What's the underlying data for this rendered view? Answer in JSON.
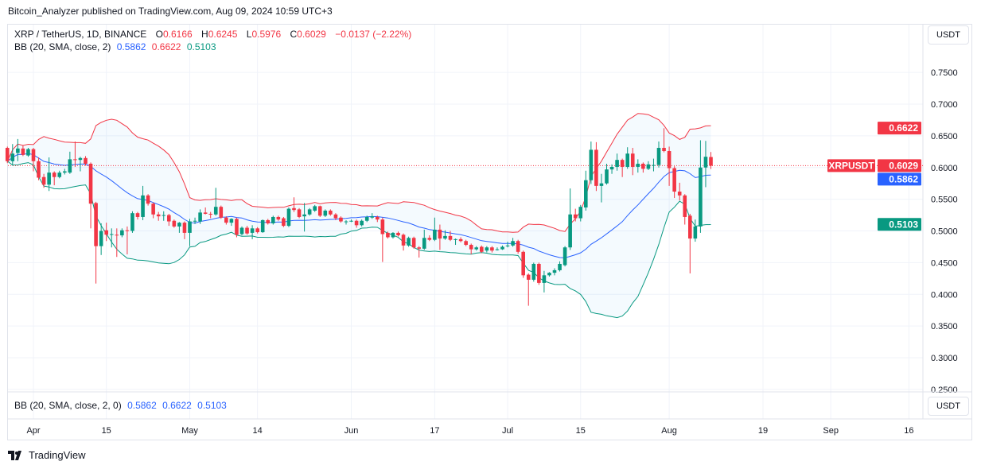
{
  "publisher_line": "Bitcoin_Analyzer published on TradingView.com, Aug 09, 2024 10:59 UTC+3",
  "legend": {
    "symbol": "XRP / TetherUS, 1D, BINANCE",
    "o_label": "O",
    "o": "0.6166",
    "h_label": "H",
    "h": "0.6245",
    "l_label": "L",
    "l": "0.5976",
    "c_label": "C",
    "c": "0.6029",
    "change": "−0.0137 (−2.22%)",
    "bb_label": "BB (20, SMA, close, 2)",
    "bb_basis": "0.5862",
    "bb_upper": "0.6622",
    "bb_lower": "0.5103"
  },
  "lower_pane": {
    "bb_label": "BB (20, SMA, close, 2, 0)",
    "bb_basis": "0.5862",
    "bb_upper": "0.6622",
    "bb_lower": "0.5103",
    "currency": "USDT"
  },
  "price_axis": {
    "currency": "USDT"
  },
  "tags": {
    "symbol": "XRPUSDT",
    "last": "0.6029",
    "upper": "0.6622",
    "basis": "0.5862",
    "lower": "0.5103"
  },
  "brand": "TradingView",
  "colors": {
    "up": "#089981",
    "down": "#f23645",
    "basis": "#2962ff",
    "upper": "#f23645",
    "lower": "#089981",
    "band_fill": "#2196f3"
  },
  "chart_data": {
    "type": "candlestick",
    "title": "XRP / TetherUS, 1D, BINANCE",
    "indicator": {
      "name": "BB",
      "length": 20,
      "ma": "SMA",
      "source": "close",
      "mult": 2,
      "last": {
        "basis": 0.5862,
        "upper": 0.6622,
        "lower": 0.5103
      }
    },
    "ylim": [
      0.25,
      0.78
    ],
    "y_ticks": [
      "0.7500",
      "0.7000",
      "0.6500",
      "0.6000",
      "0.5500",
      "0.5000",
      "0.4500",
      "0.4000",
      "0.3500",
      "0.3000",
      "0.2500"
    ],
    "x_ticks": [
      {
        "label": "Apr",
        "date": "2024-04-01"
      },
      {
        "label": "15",
        "date": "2024-04-15"
      },
      {
        "label": "May",
        "date": "2024-05-01"
      },
      {
        "label": "14",
        "date": "2024-05-14"
      },
      {
        "label": "Jun",
        "date": "2024-06-01"
      },
      {
        "label": "17",
        "date": "2024-06-17"
      },
      {
        "label": "Jul",
        "date": "2024-07-01"
      },
      {
        "label": "15",
        "date": "2024-07-15"
      },
      {
        "label": "Aug",
        "date": "2024-08-01"
      },
      {
        "label": "19",
        "date": "2024-08-19"
      },
      {
        "label": "Sep",
        "date": "2024-09-01"
      },
      {
        "label": "16",
        "date": "2024-09-16"
      }
    ],
    "x_range": [
      "2024-03-27",
      "2024-09-20"
    ],
    "grid": true,
    "last_price": 0.6029,
    "candles_columns": [
      "date",
      "open",
      "high",
      "low",
      "close"
    ],
    "candles": [
      [
        "2024-03-27",
        0.631,
        0.633,
        0.607,
        0.61
      ],
      [
        "2024-03-28",
        0.61,
        0.637,
        0.603,
        0.622
      ],
      [
        "2024-03-29",
        0.623,
        0.645,
        0.61,
        0.63
      ],
      [
        "2024-03-30",
        0.63,
        0.635,
        0.618,
        0.62
      ],
      [
        "2024-03-31",
        0.619,
        0.631,
        0.617,
        0.629
      ],
      [
        "2024-04-01",
        0.629,
        0.631,
        0.594,
        0.61
      ],
      [
        "2024-04-02",
        0.61,
        0.616,
        0.58,
        0.584
      ],
      [
        "2024-04-03",
        0.585,
        0.59,
        0.568,
        0.573
      ],
      [
        "2024-04-04",
        0.573,
        0.616,
        0.563,
        0.592
      ],
      [
        "2024-04-05",
        0.592,
        0.594,
        0.572,
        0.585
      ],
      [
        "2024-04-06",
        0.585,
        0.595,
        0.583,
        0.592
      ],
      [
        "2024-04-07",
        0.592,
        0.598,
        0.589,
        0.594
      ],
      [
        "2024-04-08",
        0.592,
        0.625,
        0.59,
        0.613
      ],
      [
        "2024-04-09",
        0.613,
        0.641,
        0.601,
        0.612
      ],
      [
        "2024-04-10",
        0.612,
        0.617,
        0.594,
        0.615
      ],
      [
        "2024-04-11",
        0.615,
        0.618,
        0.603,
        0.606
      ],
      [
        "2024-04-12",
        0.606,
        0.608,
        0.504,
        0.543
      ],
      [
        "2024-04-13",
        0.544,
        0.546,
        0.417,
        0.476
      ],
      [
        "2024-04-14",
        0.476,
        0.512,
        0.462,
        0.5
      ],
      [
        "2024-04-15",
        0.501,
        0.513,
        0.484,
        0.494
      ],
      [
        "2024-04-16",
        0.495,
        0.504,
        0.474,
        0.495
      ],
      [
        "2024-04-17",
        0.494,
        0.504,
        0.459,
        0.493
      ],
      [
        "2024-04-18",
        0.493,
        0.504,
        0.49,
        0.501
      ],
      [
        "2024-04-19",
        0.501,
        0.507,
        0.463,
        0.5
      ],
      [
        "2024-04-20",
        0.5,
        0.531,
        0.497,
        0.528
      ],
      [
        "2024-04-21",
        0.528,
        0.53,
        0.518,
        0.522
      ],
      [
        "2024-04-22",
        0.522,
        0.571,
        0.517,
        0.556
      ],
      [
        "2024-04-23",
        0.556,
        0.558,
        0.54,
        0.543
      ],
      [
        "2024-04-24",
        0.543,
        0.545,
        0.52,
        0.526
      ],
      [
        "2024-04-25",
        0.526,
        0.53,
        0.516,
        0.523
      ],
      [
        "2024-04-26",
        0.525,
        0.531,
        0.516,
        0.525
      ],
      [
        "2024-04-27",
        0.525,
        0.527,
        0.508,
        0.515
      ],
      [
        "2024-04-28",
        0.516,
        0.518,
        0.505,
        0.507
      ],
      [
        "2024-04-29",
        0.507,
        0.514,
        0.497,
        0.513
      ],
      [
        "2024-04-30",
        0.513,
        0.515,
        0.487,
        0.497
      ],
      [
        "2024-05-01",
        0.497,
        0.519,
        0.476,
        0.515
      ],
      [
        "2024-05-02",
        0.515,
        0.521,
        0.511,
        0.516
      ],
      [
        "2024-05-03",
        0.515,
        0.534,
        0.511,
        0.529
      ],
      [
        "2024-05-04",
        0.529,
        0.537,
        0.526,
        0.527
      ],
      [
        "2024-05-05",
        0.527,
        0.53,
        0.52,
        0.526
      ],
      [
        "2024-05-06",
        0.526,
        0.568,
        0.524,
        0.538
      ],
      [
        "2024-05-07",
        0.538,
        0.54,
        0.519,
        0.521
      ],
      [
        "2024-05-08",
        0.521,
        0.523,
        0.51,
        0.513
      ],
      [
        "2024-05-09",
        0.513,
        0.52,
        0.508,
        0.519
      ],
      [
        "2024-05-10",
        0.519,
        0.521,
        0.49,
        0.494
      ],
      [
        "2024-05-11",
        0.495,
        0.507,
        0.493,
        0.505
      ],
      [
        "2024-05-12",
        0.505,
        0.508,
        0.494,
        0.496
      ],
      [
        "2024-05-13",
        0.497,
        0.509,
        0.487,
        0.504
      ],
      [
        "2024-05-14",
        0.504,
        0.506,
        0.496,
        0.498
      ],
      [
        "2024-05-15",
        0.498,
        0.518,
        0.497,
        0.517
      ],
      [
        "2024-05-16",
        0.517,
        0.519,
        0.51,
        0.512
      ],
      [
        "2024-05-17",
        0.512,
        0.524,
        0.51,
        0.522
      ],
      [
        "2024-05-18",
        0.522,
        0.524,
        0.516,
        0.518
      ],
      [
        "2024-05-19",
        0.52,
        0.522,
        0.506,
        0.508
      ],
      [
        "2024-05-20",
        0.508,
        0.537,
        0.506,
        0.535
      ],
      [
        "2024-05-21",
        0.536,
        0.553,
        0.53,
        0.533
      ],
      [
        "2024-05-22",
        0.534,
        0.536,
        0.52,
        0.522
      ],
      [
        "2024-05-23",
        0.523,
        0.544,
        0.499,
        0.526
      ],
      [
        "2024-05-24",
        0.526,
        0.536,
        0.524,
        0.534
      ],
      [
        "2024-05-25",
        0.532,
        0.541,
        0.53,
        0.539
      ],
      [
        "2024-05-26",
        0.539,
        0.54,
        0.522,
        0.524
      ],
      [
        "2024-05-27",
        0.524,
        0.534,
        0.522,
        0.532
      ],
      [
        "2024-05-28",
        0.532,
        0.534,
        0.524,
        0.526
      ],
      [
        "2024-05-29",
        0.526,
        0.528,
        0.517,
        0.52
      ],
      [
        "2024-05-30",
        0.521,
        0.523,
        0.513,
        0.515
      ],
      [
        "2024-05-31",
        0.515,
        0.517,
        0.51,
        0.515
      ],
      [
        "2024-06-01",
        0.515,
        0.518,
        0.514,
        0.516
      ],
      [
        "2024-06-02",
        0.516,
        0.518,
        0.505,
        0.509
      ],
      [
        "2024-06-03",
        0.509,
        0.518,
        0.507,
        0.516
      ],
      [
        "2024-06-04",
        0.516,
        0.524,
        0.514,
        0.522
      ],
      [
        "2024-06-05",
        0.521,
        0.528,
        0.519,
        0.523
      ],
      [
        "2024-06-06",
        0.522,
        0.524,
        0.514,
        0.518
      ],
      [
        "2024-06-07",
        0.518,
        0.521,
        0.451,
        0.495
      ],
      [
        "2024-06-08",
        0.497,
        0.499,
        0.488,
        0.49
      ],
      [
        "2024-06-09",
        0.49,
        0.498,
        0.488,
        0.497
      ],
      [
        "2024-06-10",
        0.497,
        0.499,
        0.491,
        0.493
      ],
      [
        "2024-06-11",
        0.494,
        0.496,
        0.469,
        0.477
      ],
      [
        "2024-06-12",
        0.477,
        0.491,
        0.475,
        0.489
      ],
      [
        "2024-06-13",
        0.489,
        0.491,
        0.472,
        0.474
      ],
      [
        "2024-06-14",
        0.474,
        0.476,
        0.458,
        0.472
      ],
      [
        "2024-06-15",
        0.472,
        0.502,
        0.47,
        0.489
      ],
      [
        "2024-06-16",
        0.489,
        0.493,
        0.484,
        0.486
      ],
      [
        "2024-06-17",
        0.486,
        0.521,
        0.484,
        0.502
      ],
      [
        "2024-06-18",
        0.502,
        0.51,
        0.47,
        0.488
      ],
      [
        "2024-06-19",
        0.488,
        0.501,
        0.486,
        0.492
      ],
      [
        "2024-06-20",
        0.492,
        0.5,
        0.484,
        0.486
      ],
      [
        "2024-06-21",
        0.487,
        0.488,
        0.478,
        0.487
      ],
      [
        "2024-06-22",
        0.487,
        0.49,
        0.482,
        0.484
      ],
      [
        "2024-06-23",
        0.484,
        0.486,
        0.476,
        0.478
      ],
      [
        "2024-06-24",
        0.478,
        0.48,
        0.463,
        0.471
      ],
      [
        "2024-06-25",
        0.471,
        0.476,
        0.469,
        0.474
      ],
      [
        "2024-06-26",
        0.475,
        0.477,
        0.465,
        0.467
      ],
      [
        "2024-06-27",
        0.469,
        0.476,
        0.466,
        0.474
      ],
      [
        "2024-06-28",
        0.474,
        0.476,
        0.466,
        0.469
      ],
      [
        "2024-06-29",
        0.471,
        0.474,
        0.469,
        0.471
      ],
      [
        "2024-06-30",
        0.471,
        0.477,
        0.47,
        0.475
      ],
      [
        "2024-07-01",
        0.477,
        0.483,
        0.474,
        0.477
      ],
      [
        "2024-07-02",
        0.477,
        0.489,
        0.475,
        0.484
      ],
      [
        "2024-07-03",
        0.484,
        0.486,
        0.464,
        0.467
      ],
      [
        "2024-07-04",
        0.467,
        0.469,
        0.426,
        0.43
      ],
      [
        "2024-07-05",
        0.431,
        0.433,
        0.382,
        0.423
      ],
      [
        "2024-07-06",
        0.423,
        0.45,
        0.42,
        0.448
      ],
      [
        "2024-07-07",
        0.448,
        0.45,
        0.415,
        0.418
      ],
      [
        "2024-07-08",
        0.418,
        0.437,
        0.403,
        0.43
      ],
      [
        "2024-07-09",
        0.43,
        0.435,
        0.428,
        0.434
      ],
      [
        "2024-07-10",
        0.434,
        0.441,
        0.43,
        0.438
      ],
      [
        "2024-07-11",
        0.438,
        0.452,
        0.436,
        0.448
      ],
      [
        "2024-07-12",
        0.446,
        0.476,
        0.444,
        0.474
      ],
      [
        "2024-07-13",
        0.474,
        0.567,
        0.47,
        0.526
      ],
      [
        "2024-07-14",
        0.526,
        0.535,
        0.515,
        0.52
      ],
      [
        "2024-07-15",
        0.52,
        0.541,
        0.515,
        0.538
      ],
      [
        "2024-07-16",
        0.537,
        0.595,
        0.532,
        0.58
      ],
      [
        "2024-07-17",
        0.58,
        0.641,
        0.574,
        0.628
      ],
      [
        "2024-07-18",
        0.628,
        0.64,
        0.563,
        0.571
      ],
      [
        "2024-07-19",
        0.571,
        0.59,
        0.545,
        0.575
      ],
      [
        "2024-07-20",
        0.575,
        0.606,
        0.573,
        0.597
      ],
      [
        "2024-07-21",
        0.597,
        0.605,
        0.59,
        0.601
      ],
      [
        "2024-07-22",
        0.601,
        0.622,
        0.595,
        0.612
      ],
      [
        "2024-07-23",
        0.612,
        0.614,
        0.585,
        0.601
      ],
      [
        "2024-07-24",
        0.601,
        0.632,
        0.598,
        0.622
      ],
      [
        "2024-07-25",
        0.622,
        0.631,
        0.588,
        0.601
      ],
      [
        "2024-07-26",
        0.601,
        0.613,
        0.592,
        0.606
      ],
      [
        "2024-07-27",
        0.606,
        0.608,
        0.592,
        0.598
      ],
      [
        "2024-07-28",
        0.598,
        0.61,
        0.596,
        0.605
      ],
      [
        "2024-07-29",
        0.604,
        0.614,
        0.594,
        0.604
      ],
      [
        "2024-07-30",
        0.604,
        0.641,
        0.6,
        0.631
      ],
      [
        "2024-07-31",
        0.631,
        0.662,
        0.624,
        0.626
      ],
      [
        "2024-08-01",
        0.626,
        0.633,
        0.571,
        0.599
      ],
      [
        "2024-08-02",
        0.599,
        0.602,
        0.552,
        0.562
      ],
      [
        "2024-08-03",
        0.562,
        0.576,
        0.548,
        0.556
      ],
      [
        "2024-08-04",
        0.556,
        0.558,
        0.51,
        0.522
      ],
      [
        "2024-08-05",
        0.524,
        0.527,
        0.433,
        0.488
      ],
      [
        "2024-08-06",
        0.488,
        0.518,
        0.483,
        0.507
      ],
      [
        "2024-08-07",
        0.507,
        0.643,
        0.497,
        0.6
      ],
      [
        "2024-08-08",
        0.6,
        0.642,
        0.569,
        0.617
      ],
      [
        "2024-08-09",
        0.6166,
        0.6245,
        0.5976,
        0.6029
      ]
    ]
  }
}
